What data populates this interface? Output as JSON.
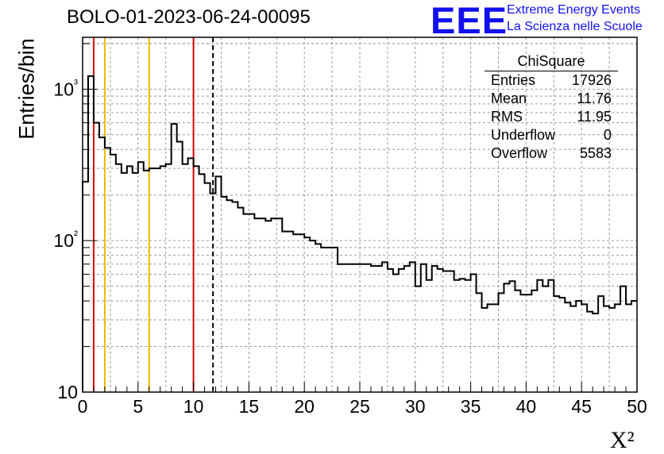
{
  "title": "BOLO-01-2023-06-24-00095",
  "logo": {
    "letters": "EEE",
    "line1": "Extreme Energy Events",
    "line2": "La Scienza nelle Scuole",
    "color": "#1111ee"
  },
  "stats": {
    "title": "ChiSquare",
    "rows": [
      {
        "label": "Entries",
        "value": "17926"
      },
      {
        "label": "Mean",
        "value": "11.76"
      },
      {
        "label": "RMS",
        "value": "11.95"
      },
      {
        "label": "Underflow",
        "value": "0"
      },
      {
        "label": "Overflow",
        "value": "5583"
      }
    ]
  },
  "ylabel": "Entries/bin",
  "xlabel": "X²",
  "chart_data": {
    "type": "histogram",
    "title": "BOLO-01-2023-06-24-00095",
    "xlabel": "X²",
    "ylabel": "Entries/bin",
    "xlim": [
      0,
      50
    ],
    "ylim": [
      10,
      2200
    ],
    "y_scale": "log",
    "grid": true,
    "bin_width": 0.5,
    "x_ticks": [
      "0",
      "5",
      "10",
      "15",
      "20",
      "25",
      "30",
      "35",
      "40",
      "45",
      "50"
    ],
    "y_ticks": [
      {
        "value": 10,
        "label": "10"
      },
      {
        "value": 100,
        "label": "10²"
      },
      {
        "value": 1000,
        "label": "10³"
      }
    ],
    "values": [
      245,
      1220,
      600,
      480,
      410,
      370,
      320,
      280,
      310,
      280,
      330,
      290,
      300,
      300,
      310,
      320,
      590,
      450,
      320,
      350,
      310,
      275,
      240,
      205,
      265,
      195,
      185,
      180,
      165,
      150,
      150,
      140,
      140,
      135,
      140,
      140,
      115,
      115,
      110,
      110,
      105,
      100,
      95,
      90,
      90,
      90,
      70,
      70,
      70,
      70,
      70,
      70,
      68,
      68,
      72,
      65,
      60,
      65,
      68,
      72,
      50,
      70,
      55,
      68,
      65,
      63,
      63,
      55,
      56,
      55,
      60,
      45,
      36,
      38,
      38,
      45,
      52,
      54,
      47,
      44,
      44,
      47,
      55,
      50,
      55,
      43,
      42,
      39,
      37,
      40,
      38,
      34,
      33,
      43,
      37,
      36,
      38,
      50,
      38,
      40
    ],
    "reference_lines": [
      {
        "x": 1,
        "color": "#dd0000",
        "style": "solid"
      },
      {
        "x": 2,
        "color": "#f0b800",
        "style": "solid"
      },
      {
        "x": 6,
        "color": "#f0b800",
        "style": "solid"
      },
      {
        "x": 10,
        "color": "#dd0000",
        "style": "solid"
      },
      {
        "x": 11.76,
        "color": "#000000",
        "style": "dashed"
      }
    ]
  }
}
